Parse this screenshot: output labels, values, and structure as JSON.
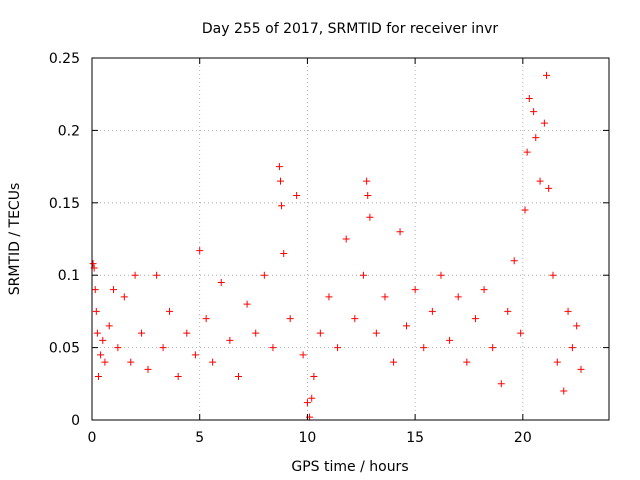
{
  "chart_data": {
    "type": "scatter",
    "title": "Day 255 of 2017, SRMTID for receiver invr",
    "xlabel": "GPS time / hours",
    "ylabel": "SRMTID / TECUs",
    "xlim": [
      0,
      24
    ],
    "ylim": [
      0,
      0.25
    ],
    "x_ticks": [
      "0",
      "5",
      "10",
      "15",
      "20"
    ],
    "y_ticks": [
      "0",
      "0.05",
      "0.1",
      "0.15",
      "0.2",
      "0.25"
    ],
    "grid": true,
    "marker": "plus",
    "color": "#ff0000",
    "series": [
      {
        "points": [
          [
            0.05,
            0.108
          ],
          [
            0.1,
            0.105
          ],
          [
            0.15,
            0.09
          ],
          [
            0.2,
            0.075
          ],
          [
            0.25,
            0.06
          ],
          [
            0.3,
            0.03
          ],
          [
            0.4,
            0.045
          ],
          [
            0.5,
            0.055
          ],
          [
            0.6,
            0.04
          ],
          [
            0.8,
            0.065
          ],
          [
            1.0,
            0.09
          ],
          [
            1.2,
            0.05
          ],
          [
            1.5,
            0.085
          ],
          [
            1.8,
            0.04
          ],
          [
            2.0,
            0.1
          ],
          [
            2.3,
            0.06
          ],
          [
            2.6,
            0.035
          ],
          [
            3.0,
            0.1
          ],
          [
            3.3,
            0.05
          ],
          [
            3.6,
            0.075
          ],
          [
            4.0,
            0.03
          ],
          [
            4.4,
            0.06
          ],
          [
            4.8,
            0.045
          ],
          [
            5.0,
            0.117
          ],
          [
            5.3,
            0.07
          ],
          [
            5.6,
            0.04
          ],
          [
            6.0,
            0.095
          ],
          [
            6.4,
            0.055
          ],
          [
            6.8,
            0.03
          ],
          [
            7.2,
            0.08
          ],
          [
            7.6,
            0.06
          ],
          [
            8.0,
            0.1
          ],
          [
            8.4,
            0.05
          ],
          [
            8.7,
            0.175
          ],
          [
            8.75,
            0.165
          ],
          [
            8.8,
            0.148
          ],
          [
            8.9,
            0.115
          ],
          [
            9.2,
            0.07
          ],
          [
            9.5,
            0.155
          ],
          [
            9.8,
            0.045
          ],
          [
            10.0,
            0.012
          ],
          [
            10.1,
            0.002
          ],
          [
            10.2,
            0.015
          ],
          [
            10.3,
            0.03
          ],
          [
            10.6,
            0.06
          ],
          [
            11.0,
            0.085
          ],
          [
            11.4,
            0.05
          ],
          [
            11.8,
            0.125
          ],
          [
            12.2,
            0.07
          ],
          [
            12.6,
            0.1
          ],
          [
            12.75,
            0.165
          ],
          [
            12.8,
            0.155
          ],
          [
            12.9,
            0.14
          ],
          [
            13.2,
            0.06
          ],
          [
            13.6,
            0.085
          ],
          [
            14.0,
            0.04
          ],
          [
            14.3,
            0.13
          ],
          [
            14.6,
            0.065
          ],
          [
            15.0,
            0.09
          ],
          [
            15.4,
            0.05
          ],
          [
            15.8,
            0.075
          ],
          [
            16.2,
            0.1
          ],
          [
            16.6,
            0.055
          ],
          [
            17.0,
            0.085
          ],
          [
            17.4,
            0.04
          ],
          [
            17.8,
            0.07
          ],
          [
            18.2,
            0.09
          ],
          [
            18.6,
            0.05
          ],
          [
            19.0,
            0.025
          ],
          [
            19.3,
            0.075
          ],
          [
            19.6,
            0.11
          ],
          [
            19.9,
            0.06
          ],
          [
            20.1,
            0.145
          ],
          [
            20.2,
            0.185
          ],
          [
            20.3,
            0.222
          ],
          [
            20.5,
            0.213
          ],
          [
            20.6,
            0.195
          ],
          [
            20.8,
            0.165
          ],
          [
            21.0,
            0.205
          ],
          [
            21.1,
            0.238
          ],
          [
            21.2,
            0.16
          ],
          [
            21.4,
            0.1
          ],
          [
            21.6,
            0.04
          ],
          [
            21.9,
            0.02
          ],
          [
            22.1,
            0.075
          ],
          [
            22.3,
            0.05
          ],
          [
            22.5,
            0.065
          ],
          [
            22.7,
            0.035
          ]
        ]
      }
    ]
  }
}
